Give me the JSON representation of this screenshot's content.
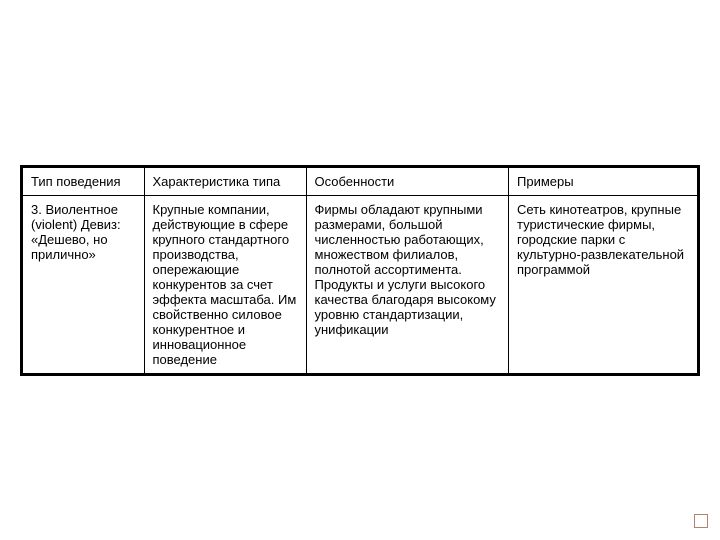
{
  "table": {
    "columns": [
      "Тип поведения",
      "Характеристика типа",
      "Особенности",
      "Примеры"
    ],
    "rows": [
      [
        "3. Виолентное (violent) Девиз: «Дешево, но прилично»",
        "Крупные компании, действующие в сфере крупного стандартного производства, опережающие конкурентов за счет эффекта масштаба. Им свойственно силовое конкурентное и инновационное поведение",
        "Фирмы обладают крупными размерами, большой численностью работающих, множеством филиалов, полнотой ассортимента. Продукты и услуги высокого качества благодаря высокому уровню стандартизации, унификации",
        "Сеть  кинотеатров, крупные туристические фирмы, городские парки с культурно-развлекательной программой"
      ]
    ],
    "column_widths": [
      "18%",
      "24%",
      "30%",
      "28%"
    ],
    "border_color": "#000000",
    "background_color": "#ffffff",
    "text_color": "#000000",
    "font_size": 13
  }
}
